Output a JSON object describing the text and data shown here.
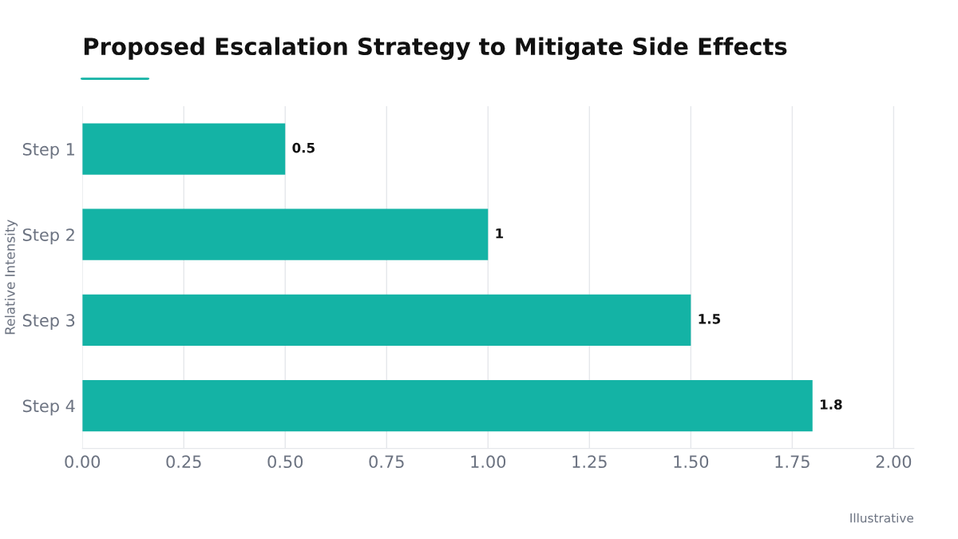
{
  "chart_data": {
    "type": "bar",
    "orientation": "horizontal",
    "title": "Proposed Escalation Strategy to Mitigate Side Effects",
    "ylabel": "Relative Intensity",
    "categories": [
      "Step 1",
      "Step 2",
      "Step 3",
      "Step 4"
    ],
    "values": [
      0.5,
      1,
      1.5,
      1.8
    ],
    "color": "#14b3a5",
    "data_labels": true,
    "xlim": [
      0,
      2.05
    ],
    "xticks": [
      {
        "value": 0,
        "label": "0.00"
      },
      {
        "value": 0.25,
        "label": "0.25"
      },
      {
        "value": 0.5,
        "label": "0.50"
      },
      {
        "value": 0.75,
        "label": "0.75"
      },
      {
        "value": 1,
        "label": "1.00"
      },
      {
        "value": 1.25,
        "label": "1.25"
      },
      {
        "value": 1.5,
        "label": "1.50"
      },
      {
        "value": 1.75,
        "label": "1.75"
      },
      {
        "value": 2,
        "label": "2.00"
      }
    ],
    "grid": "x",
    "legend": false,
    "annotations": [
      "Illustrative"
    ]
  }
}
